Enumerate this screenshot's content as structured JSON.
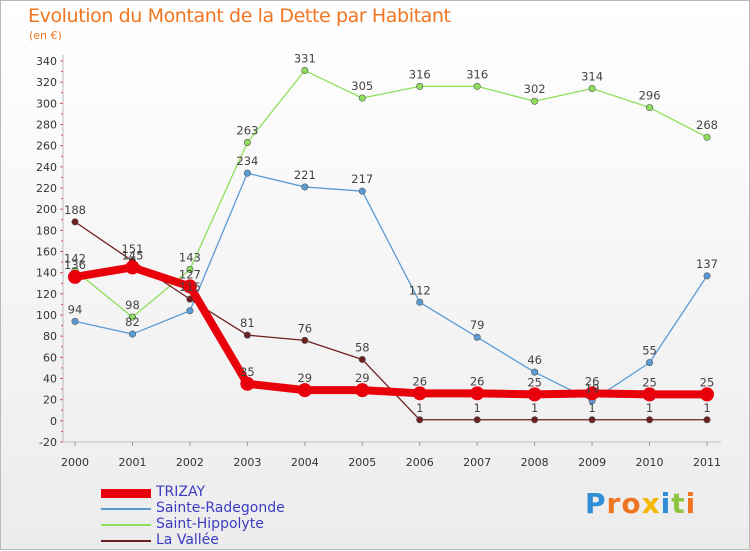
{
  "header": {
    "title": "Evolution du Montant de la Dette par Habitant",
    "subtitle": "(en €)"
  },
  "brand": {
    "text": "Proxiti",
    "letters": [
      "P",
      "r",
      "o",
      "x",
      "i",
      "t",
      "i"
    ],
    "letter_colors": [
      "#2f8fd6",
      "#f07522",
      "#f07522",
      "#f5b800",
      "#2f8fd6",
      "#8cc63f",
      "#f07522"
    ]
  },
  "chart_data": {
    "type": "line",
    "title": "Evolution du Montant de la Dette par Habitant",
    "subtitle": "(en €)",
    "xlabel": "",
    "ylabel": "",
    "x": [
      "2000",
      "2001",
      "2002",
      "2003",
      "2004",
      "2005",
      "2006",
      "2007",
      "2008",
      "2009",
      "2010",
      "2011"
    ],
    "ylim": [
      -20,
      340
    ],
    "yticks": [
      -20,
      0,
      20,
      40,
      60,
      80,
      100,
      120,
      140,
      160,
      180,
      200,
      220,
      240,
      260,
      280,
      300,
      320,
      340
    ],
    "grid": false,
    "legend_position": "bottom-left",
    "series": [
      {
        "name": "TRIZAY",
        "color": "#e8000b",
        "emphasis": true,
        "values": [
          136,
          145,
          127,
          35,
          29,
          29,
          26,
          26,
          25,
          26,
          25,
          25
        ],
        "labels": [
          "136",
          "145",
          "127",
          "35",
          "29",
          "29",
          "26",
          "26",
          "25",
          "26",
          "25",
          "25"
        ]
      },
      {
        "name": "Sainte-Radegonde",
        "color": "#5b9bd5",
        "emphasis": false,
        "values": [
          94,
          82,
          104,
          234,
          221,
          217,
          112,
          79,
          46,
          19,
          55,
          137
        ],
        "labels": [
          "94",
          "82",
          "",
          "234",
          "221",
          "217",
          "112",
          "79",
          "46",
          "19",
          "55",
          "137"
        ]
      },
      {
        "name": "Saint-Hippolyte",
        "color": "#8ee05a",
        "emphasis": false,
        "values": [
          142,
          98,
          143,
          263,
          331,
          305,
          316,
          316,
          302,
          314,
          296,
          268
        ],
        "labels": [
          "142",
          "98",
          "143",
          "263",
          "331",
          "305",
          "316",
          "316",
          "302",
          "314",
          "296",
          "268"
        ]
      },
      {
        "name": "La Vallée",
        "color": "#6e1f1f",
        "emphasis": false,
        "values": [
          188,
          151,
          115,
          81,
          76,
          58,
          1,
          1,
          1,
          1,
          1,
          1
        ],
        "labels": [
          "188",
          "151",
          "115",
          "81",
          "76",
          "58",
          "1",
          "1",
          "1",
          "1",
          "1",
          "1"
        ]
      }
    ]
  }
}
